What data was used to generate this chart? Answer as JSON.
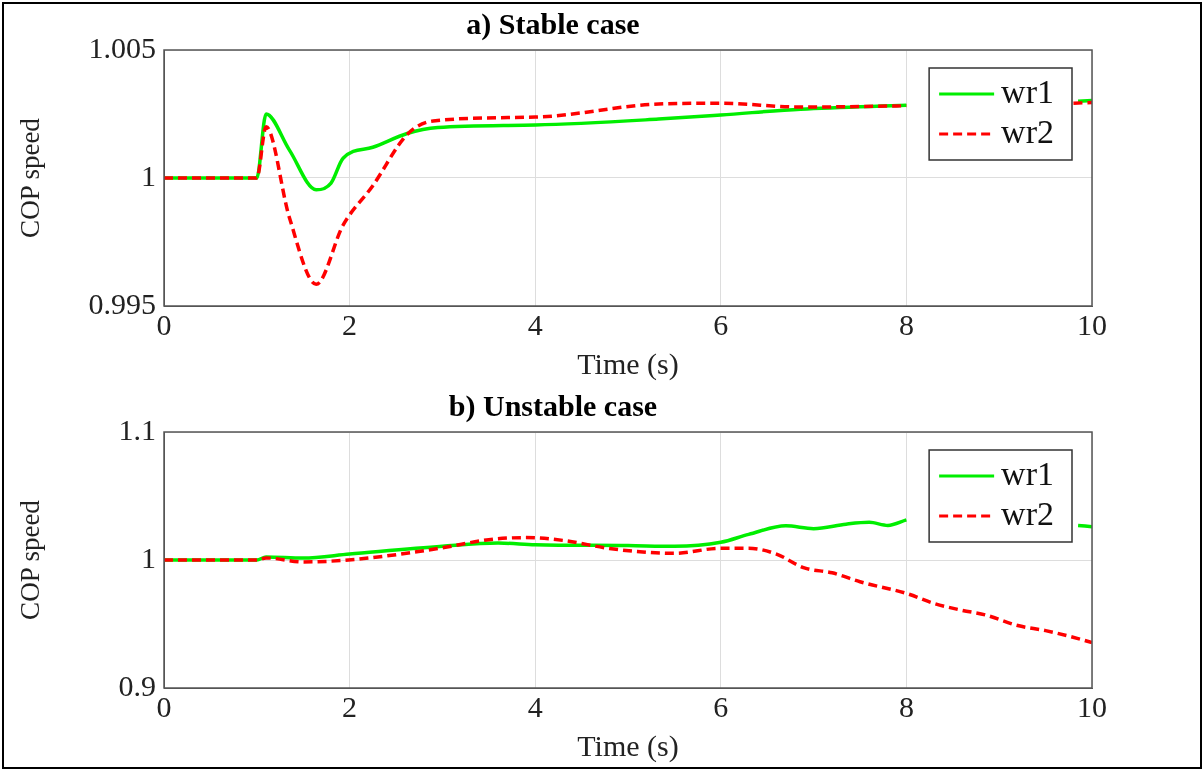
{
  "chart_data": [
    {
      "type": "line",
      "title": "a) Stable case",
      "xlabel": "Time (s)",
      "ylabel": "COP speed",
      "xlim": [
        0,
        10
      ],
      "xticks": [
        0,
        2,
        4,
        6,
        8,
        10
      ],
      "ylim": [
        0.995,
        1.005
      ],
      "yticks": [
        0.995,
        1,
        1.005
      ],
      "grid": true,
      "legend": "top right",
      "marker": "none",
      "series": [
        {
          "name": "wr1",
          "color": "#00ee00",
          "line_style": "solid",
          "x": [
            0,
            1,
            1.1,
            1.35,
            1.64,
            1.8,
            1.93,
            2.25,
            2.62,
            2.95,
            4,
            5.33,
            6,
            6.86,
            8,
            8.15,
            9.75,
            9.85,
            10
          ],
          "values": [
            1,
            1,
            1.0025,
            1.0011,
            0.99954,
            0.9998,
            1.00077,
            1.0012,
            1.00174,
            1.00197,
            1.00207,
            1.0023,
            1.00246,
            1.00269,
            1.00284,
            null,
            null,
            1.003,
            1.00303
          ]
        },
        {
          "name": "wr2",
          "color": "#ff0000",
          "line_style": "dashed",
          "x": [
            0,
            1,
            1.1,
            1.35,
            1.64,
            1.93,
            2.25,
            2.62,
            2.9,
            4,
            5.33,
            6,
            6.86,
            8,
            8.15,
            9.75,
            9.8,
            10
          ],
          "values": [
            1,
            1,
            1.002,
            0.99847,
            0.99585,
            0.99816,
            0.9997,
            1.0017,
            1.00223,
            1.00238,
            1.00289,
            1.00292,
            1.00277,
            1.00282,
            null,
            null,
            1.00292,
            1.00295
          ]
        }
      ]
    },
    {
      "type": "line",
      "title": "b) Unstable case",
      "xlabel": "Time (s)",
      "ylabel": "COP speed",
      "xlim": [
        0,
        10
      ],
      "xticks": [
        0,
        2,
        4,
        6,
        8,
        10
      ],
      "ylim": [
        0.9,
        1.1
      ],
      "yticks": [
        0.9,
        1,
        1.1
      ],
      "grid": true,
      "legend": "top right",
      "marker": "none",
      "series": [
        {
          "name": "wr1",
          "color": "#00ee00",
          "line_style": "solid",
          "x": [
            0,
            1,
            1.1,
            1.5,
            2,
            3,
            3.6,
            4,
            5,
            5.5,
            6,
            6.3,
            6.7,
            7,
            7.35,
            7.6,
            7.8,
            8,
            8.15,
            9.75,
            9.85,
            10
          ],
          "values": [
            1,
            1,
            1.0024,
            1.0015,
            1.0046,
            1.0107,
            1.0132,
            1.012,
            1.0113,
            1.0107,
            1.0138,
            1.02,
            1.0267,
            1.0245,
            1.028,
            1.0294,
            1.027,
            1.0313,
            null,
            null,
            1.027,
            1.026
          ]
        },
        {
          "name": "wr2",
          "color": "#ff0000",
          "line_style": "dashed",
          "x": [
            0,
            1,
            1.1,
            1.5,
            1.8,
            2.2,
            3,
            3.5,
            3.9,
            4.3,
            4.8,
            5.2,
            5.5,
            6,
            6.3,
            6.6,
            6.9,
            7.2,
            7.5,
            8,
            8.3,
            8.6,
            8.85,
            9.2,
            9.5,
            9.85,
            10
          ],
          "values": [
            1,
            1,
            1.0016,
            0.9985,
            0.9991,
            1.0015,
            1.0095,
            1.0159,
            1.0175,
            1.0153,
            1.009,
            1.006,
            1.0052,
            1.0092,
            1.0092,
            1.0046,
            0.9938,
            0.99,
            0.983,
            0.9739,
            0.966,
            0.9607,
            0.9571,
            0.9488,
            0.9448,
            0.9386,
            0.9355
          ]
        }
      ]
    }
  ]
}
